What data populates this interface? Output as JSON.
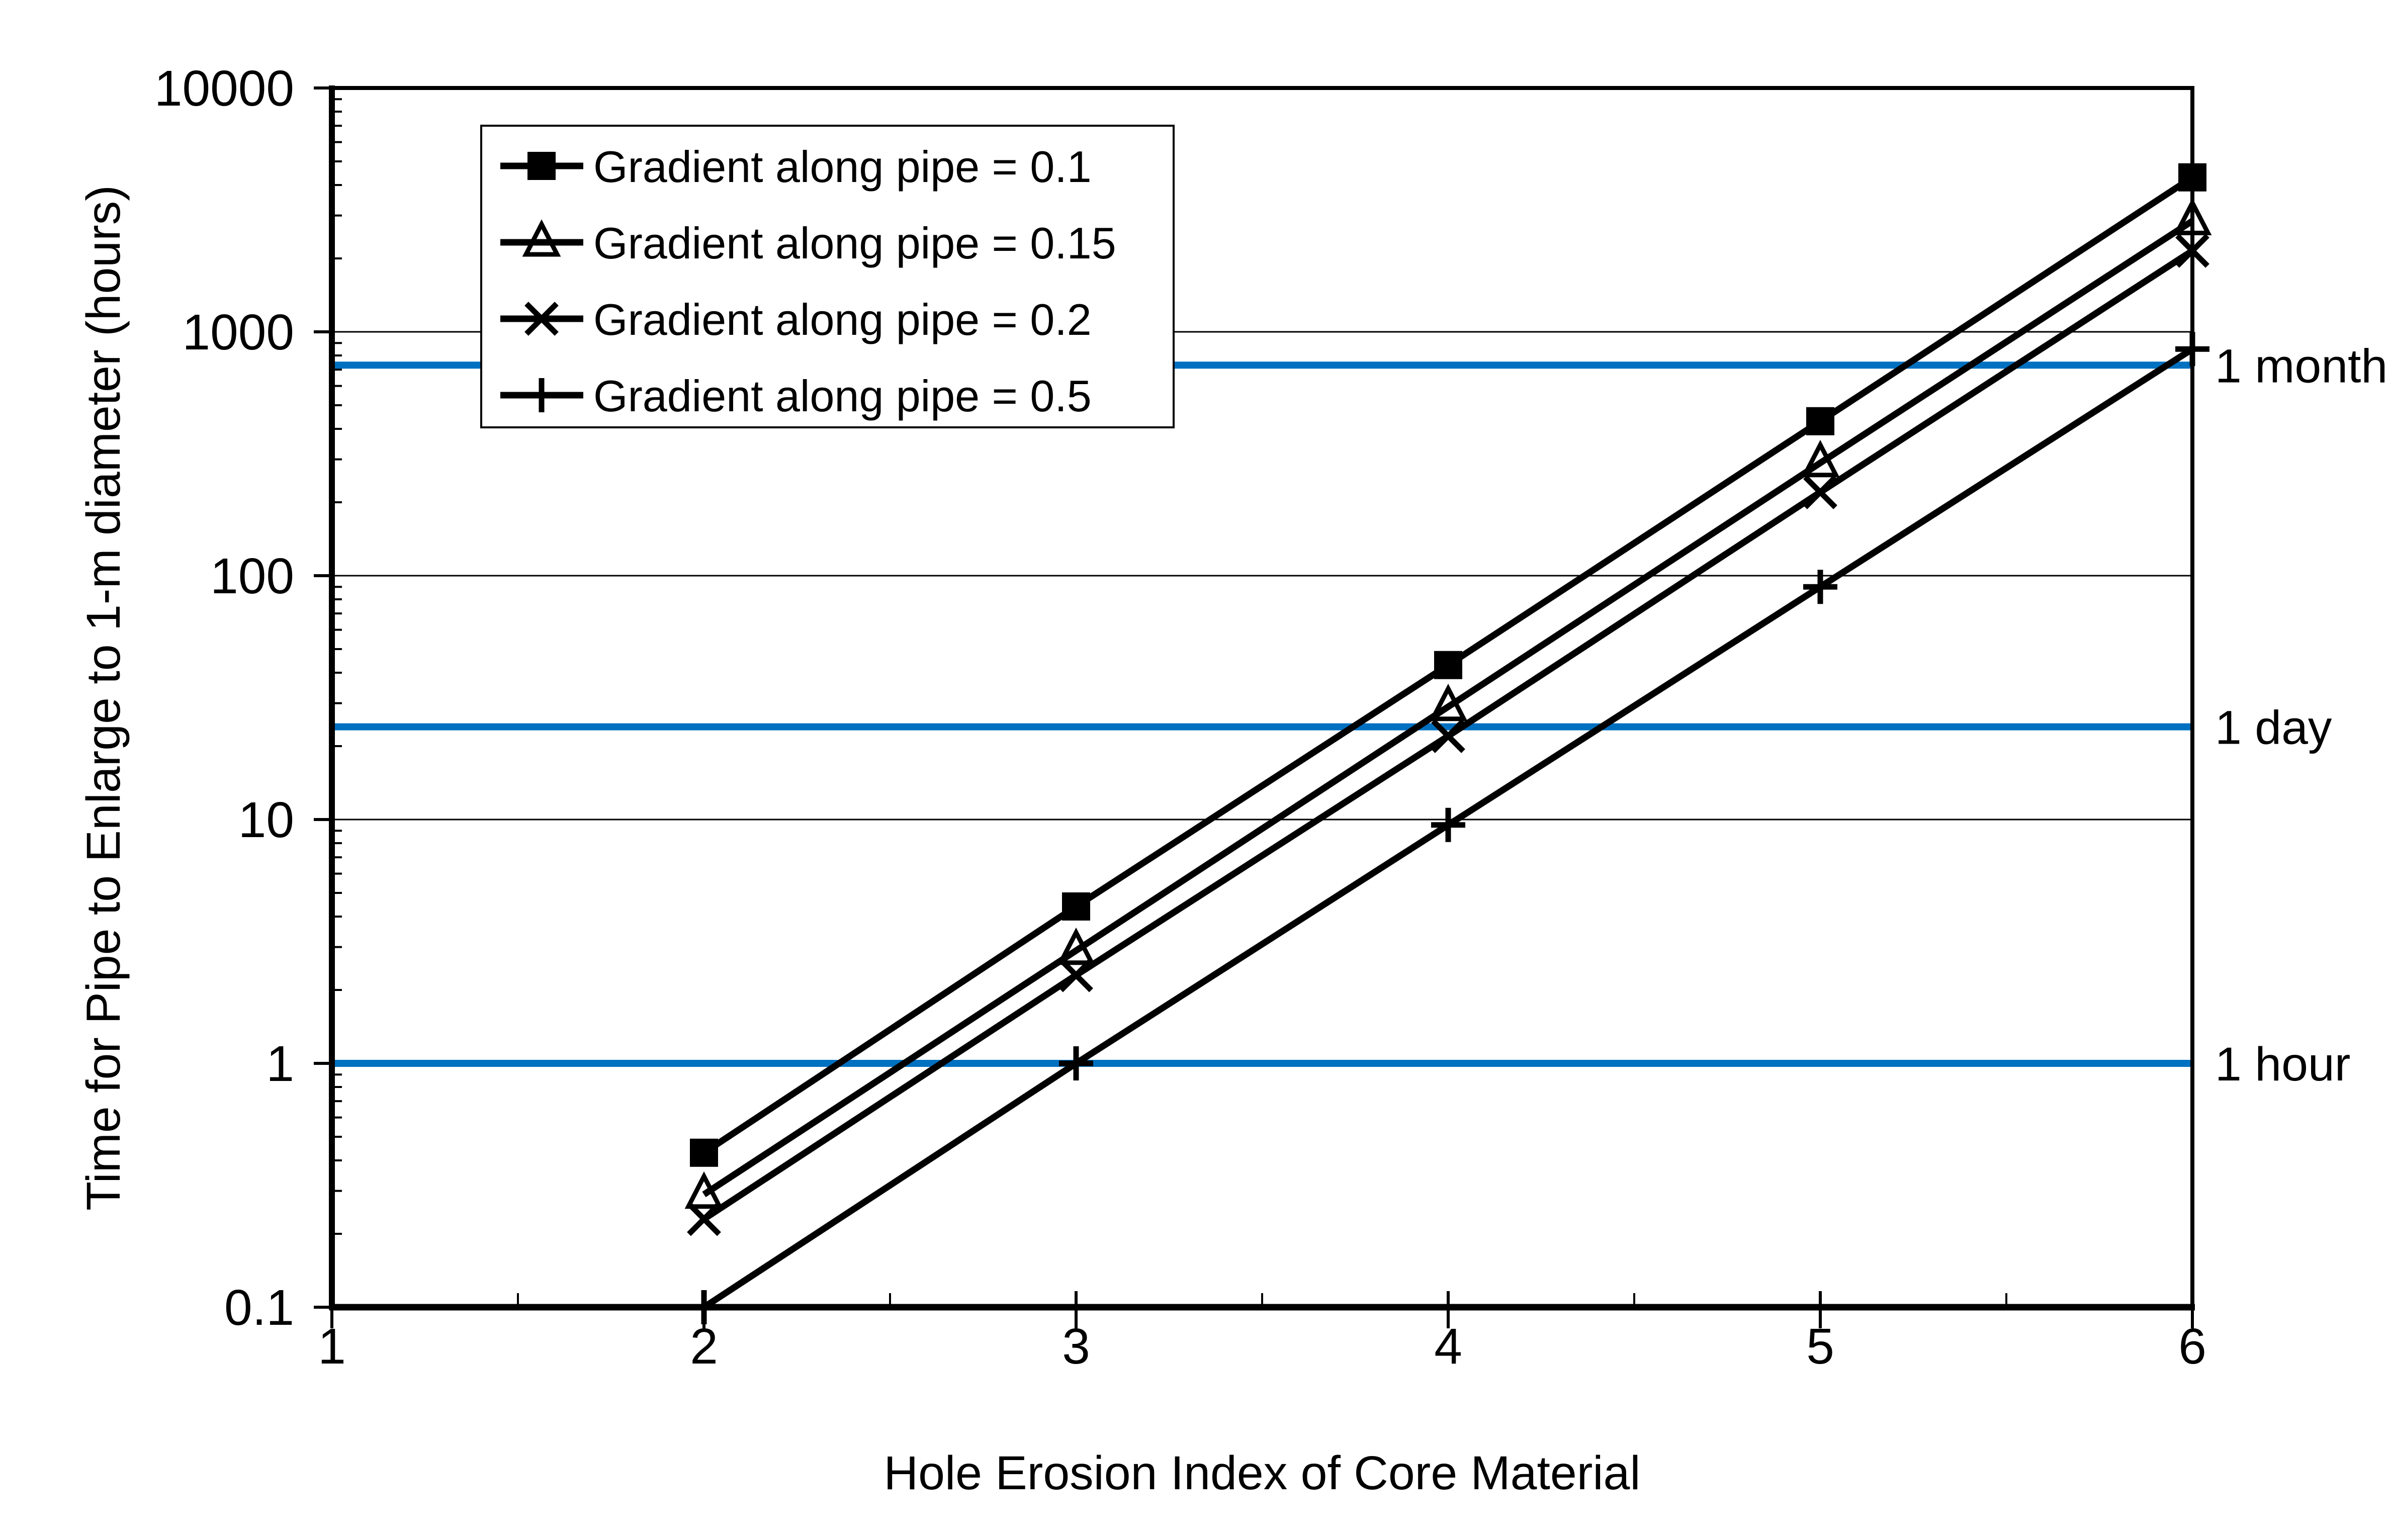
{
  "chart_data": {
    "type": "line",
    "title": "",
    "xlabel": "Hole Erosion Index of Core Material",
    "ylabel": "Time for Pipe to Enlarge to 1-m diameter (hours)",
    "x_scale": "linear",
    "y_scale": "log",
    "xlim": [
      1,
      6
    ],
    "ylim": [
      0.1,
      10000
    ],
    "x_ticks": [
      1,
      2,
      3,
      4,
      5,
      6
    ],
    "x_tick_labels": [
      "1",
      "2",
      "3",
      "4",
      "5",
      "6"
    ],
    "x_minor_ticks": [
      1.5,
      2.5,
      3.5,
      4.5,
      5.5
    ],
    "y_ticks": [
      10000,
      1000,
      100,
      10,
      1,
      0.1
    ],
    "y_tick_labels": [
      "10000",
      "1000",
      "100",
      "10",
      "1",
      "0.1"
    ],
    "gridlines_at": [
      1000,
      100,
      10,
      1
    ],
    "grid": "horizontal-decades",
    "legend_position": "top-left-inside",
    "x": [
      2,
      3,
      4,
      5,
      6
    ],
    "series": [
      {
        "name": "Gradient along pipe = 0.1",
        "marker": "filled-square",
        "values": [
          0.43,
          4.4,
          43,
          430,
          4300
        ]
      },
      {
        "name": "Gradient along pipe = 0.15",
        "marker": "open-triangle",
        "values": [
          0.29,
          2.9,
          29,
          290,
          2850
        ]
      },
      {
        "name": "Gradient along pipe = 0.2",
        "marker": "x-cross",
        "values": [
          0.23,
          2.3,
          22,
          220,
          2150
        ]
      },
      {
        "name": "Gradient along pipe = 0.5",
        "marker": "plus",
        "values": [
          0.1,
          1.0,
          9.5,
          90,
          850
        ]
      }
    ],
    "reference_lines": [
      {
        "label": "1 month",
        "value": 730
      },
      {
        "label": "1 day",
        "value": 24
      },
      {
        "label": "1 hour",
        "value": 1
      }
    ],
    "colors": {
      "series": "#000000",
      "reference": "#0070C0",
      "grid": "#000000",
      "frame": "#000000",
      "background": "#ffffff",
      "legend_background": "#ffffff",
      "legend_border": "#000000"
    }
  }
}
